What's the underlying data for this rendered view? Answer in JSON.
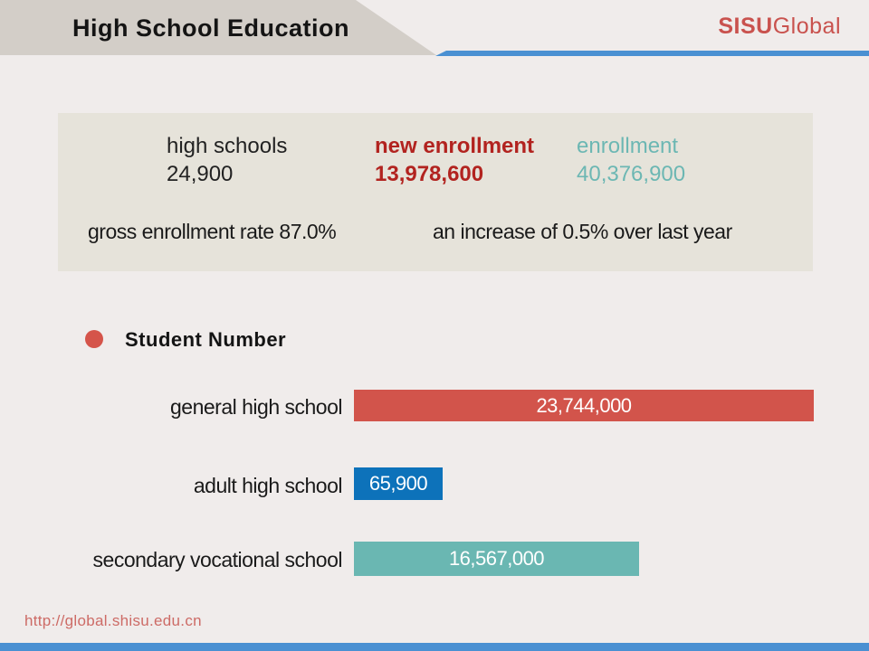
{
  "page": {
    "title": "High School Education",
    "logo_bold": "SISU",
    "logo_light": "Global",
    "footer_url": "http://global.shisu.edu.cn"
  },
  "colors": {
    "background": "#f0eceb",
    "banner": "#d3cec8",
    "stats_box": "#e6e3da",
    "accent_blue_rule": "#4a90d2",
    "logo_red": "#c9524e",
    "stat_red": "#b2231f",
    "stat_teal": "#6cb7b3",
    "bullet_red": "#d5544a",
    "bar_red": "#d2544b",
    "bar_blue": "#0d72ba",
    "bar_teal": "#6ab7b2",
    "footer_red": "#cd6b66"
  },
  "stats_box": {
    "items": [
      {
        "label": "high schools",
        "value": "24,900"
      },
      {
        "label": "new enrollment",
        "value": "13,978,600"
      },
      {
        "label": "enrollment",
        "value": "40,376,900"
      }
    ],
    "notes": [
      "gross enrollment rate 87.0%",
      "an increase of 0.5% over last year"
    ]
  },
  "section": {
    "heading": "Student Number"
  },
  "chart_data": {
    "type": "bar",
    "orientation": "horizontal",
    "title": "Student Number",
    "categories": [
      "general high school",
      "adult high school",
      "secondary vocational school"
    ],
    "values": [
      23744000,
      65900,
      16567000
    ],
    "value_labels": [
      "23,744,000",
      "65,900",
      "16,567,000"
    ],
    "bar_colors": [
      "#d2544b",
      "#0d72ba",
      "#6ab7b2"
    ],
    "legend": "none",
    "grid": false,
    "note": "bar lengths roughly proportional; smallest bar drawn at minimum visible width"
  }
}
